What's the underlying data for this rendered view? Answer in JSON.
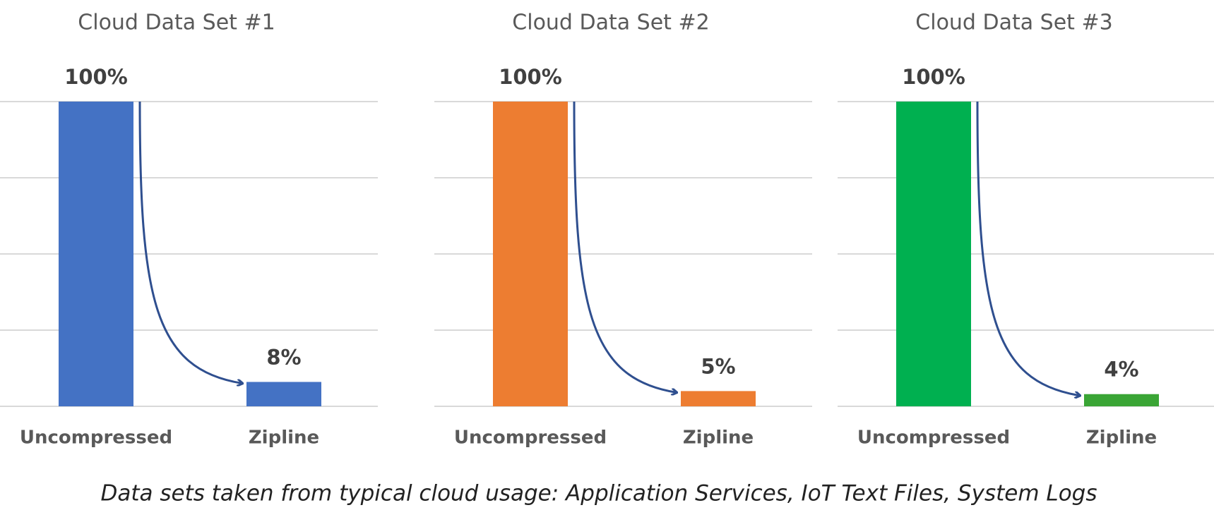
{
  "chart_data": [
    {
      "type": "bar",
      "title": "Cloud Data Set #1",
      "categories": [
        "Uncompressed",
        "Zipline"
      ],
      "values": [
        100,
        8
      ],
      "value_labels": [
        "100%",
        "8%"
      ],
      "colors": [
        "#4472c4",
        "#4472c4"
      ],
      "ylim": [
        0,
        100
      ],
      "yticks": [
        0,
        25,
        50,
        75,
        100
      ],
      "grid": true
    },
    {
      "type": "bar",
      "title": "Cloud Data Set #2",
      "categories": [
        "Uncompressed",
        "Zipline"
      ],
      "values": [
        100,
        5
      ],
      "value_labels": [
        "100%",
        "5%"
      ],
      "colors": [
        "#ed7d31",
        "#ed7d31"
      ],
      "ylim": [
        0,
        100
      ],
      "yticks": [
        0,
        25,
        50,
        75,
        100
      ],
      "grid": true
    },
    {
      "type": "bar",
      "title": "Cloud Data Set #3",
      "categories": [
        "Uncompressed",
        "Zipline"
      ],
      "values": [
        100,
        4
      ],
      "value_labels": [
        "100%",
        "4%"
      ],
      "colors": [
        "#00b050",
        "#3aa535"
      ],
      "ylim": [
        0,
        100
      ],
      "yticks": [
        0,
        25,
        50,
        75,
        100
      ],
      "grid": true
    }
  ],
  "caption": "Data sets taken from typical cloud usage:  Application Services, IoT Text Files, System Logs"
}
